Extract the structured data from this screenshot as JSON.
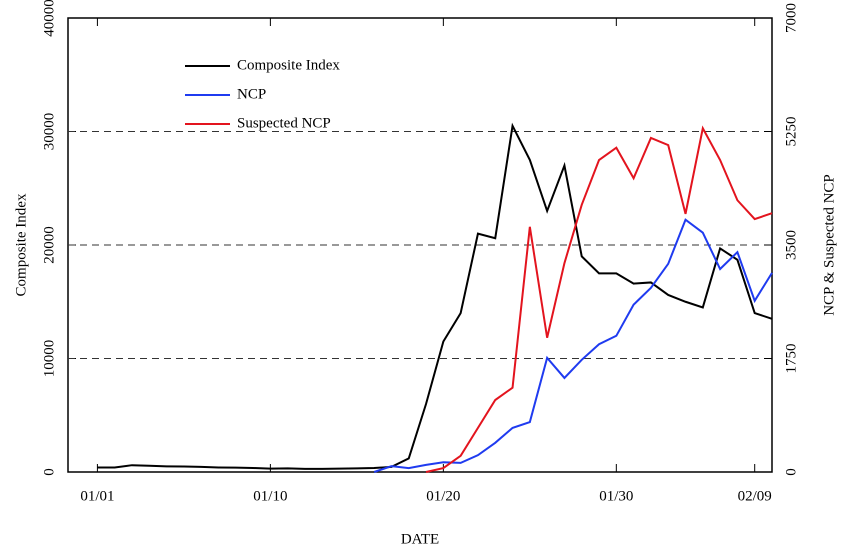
{
  "chart_data": {
    "type": "line",
    "x": [
      0,
      1,
      2,
      3,
      4,
      5,
      6,
      7,
      8,
      9,
      10,
      11,
      12,
      13,
      14,
      15,
      16,
      17,
      18,
      19,
      20,
      21,
      22,
      23,
      24,
      25,
      26,
      27,
      28,
      29,
      30,
      31,
      32,
      33,
      34,
      35,
      36,
      37,
      38,
      39
    ],
    "xlim": [
      -1.7,
      39
    ],
    "xticks": [
      {
        "value": 0,
        "label": "01/01"
      },
      {
        "value": 10,
        "label": "01/10"
      },
      {
        "value": 20,
        "label": "01/20"
      },
      {
        "value": 30,
        "label": "01/30"
      },
      {
        "value": 38,
        "label": "02/09"
      }
    ],
    "xlabel": "DATE",
    "ylabel": "Composite Index",
    "y2label": "NCP & Suspected NCP",
    "ylim": [
      0,
      40000
    ],
    "yticks": [
      0,
      10000,
      20000,
      30000,
      40000
    ],
    "y2lim": [
      0,
      7000
    ],
    "y2ticks": [
      0,
      1750,
      3500,
      5250,
      7000
    ],
    "grid": true,
    "legend": "upper left",
    "series": [
      {
        "name": "Composite Index",
        "color": "#000000",
        "values": [
          400,
          400,
          600,
          550,
          500,
          480,
          450,
          400,
          380,
          350,
          300,
          320,
          280,
          280,
          300,
          320,
          350,
          450,
          1200,
          6000,
          11500,
          14000,
          21000,
          20600,
          30500,
          27500,
          23000,
          27000,
          19000,
          17500,
          17500,
          16600,
          16700,
          15600,
          15000,
          14500,
          19700,
          18700,
          14000,
          13500
        ]
      },
      {
        "name": "NCP",
        "color": "#1f3bf0",
        "axis": "y2",
        "values": [
          null,
          null,
          null,
          null,
          null,
          null,
          null,
          null,
          null,
          null,
          null,
          null,
          null,
          null,
          null,
          null,
          0,
          90,
          60,
          110,
          150,
          140,
          260,
          450,
          680,
          770,
          1760,
          1450,
          1730,
          1970,
          2100,
          2580,
          2840,
          3210,
          3890,
          3690,
          3130,
          3390,
          2640,
          3070
        ]
      },
      {
        "name": "Suspected NCP",
        "color": "#e3141e",
        "axis": "y2",
        "values": [
          null,
          null,
          null,
          null,
          null,
          null,
          null,
          null,
          null,
          null,
          null,
          null,
          null,
          null,
          null,
          null,
          null,
          null,
          null,
          0,
          60,
          250,
          680,
          1110,
          1300,
          3780,
          2070,
          3220,
          4120,
          4810,
          5000,
          4530,
          5150,
          5040,
          3980,
          5300,
          4810,
          4190,
          3900,
          3990
        ]
      }
    ]
  }
}
